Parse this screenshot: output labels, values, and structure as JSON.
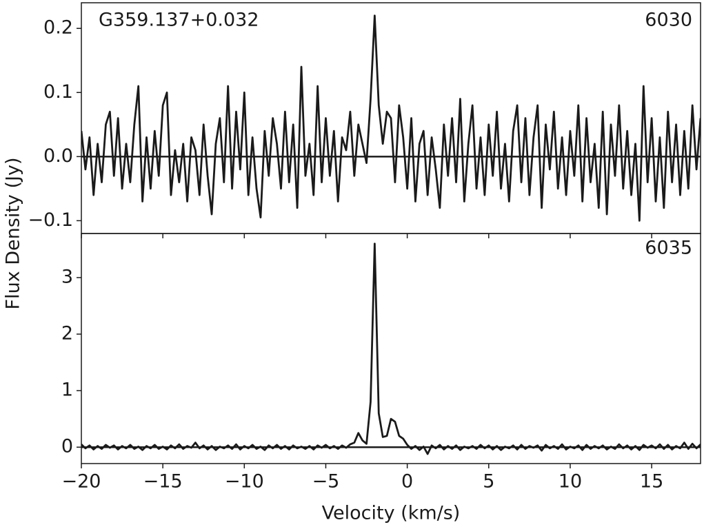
{
  "chart_data": [
    {
      "type": "line",
      "title": "G359.137+0.032",
      "label": "6030",
      "ylabel": "Flux Density (Jy)",
      "color": "#1a1a1a",
      "xlim": [
        -20,
        18
      ],
      "xticks": [
        -20,
        -15,
        -10,
        -5,
        0,
        5,
        10,
        15
      ],
      "ylim": [
        -0.12,
        0.24
      ],
      "yticks": [
        {
          "value": -0.1,
          "label": "−0.1"
        },
        {
          "value": 0,
          "label": "0.0"
        },
        0.1,
        0.2
      ],
      "x": [
        -20,
        -19.75,
        -19.5,
        -19.25,
        -19,
        -18.75,
        -18.5,
        -18.25,
        -18,
        -17.75,
        -17.5,
        -17.25,
        -17,
        -16.75,
        -16.5,
        -16.25,
        -16,
        -15.75,
        -15.5,
        -15.25,
        -15,
        -14.75,
        -14.5,
        -14.25,
        -14,
        -13.75,
        -13.5,
        -13.25,
        -13,
        -12.75,
        -12.5,
        -12.25,
        -12,
        -11.75,
        -11.5,
        -11.25,
        -11,
        -10.75,
        -10.5,
        -10.25,
        -10,
        -9.75,
        -9.5,
        -9.25,
        -9,
        -8.75,
        -8.5,
        -8.25,
        -8,
        -7.75,
        -7.5,
        -7.25,
        -7,
        -6.75,
        -6.5,
        -6.25,
        -6,
        -5.75,
        -5.5,
        -5.25,
        -5,
        -4.75,
        -4.5,
        -4.25,
        -4,
        -3.75,
        -3.5,
        -3.25,
        -3,
        -2.75,
        -2.5,
        -2.25,
        -2,
        -1.75,
        -1.5,
        -1.25,
        -1,
        -0.75,
        -0.5,
        -0.25,
        0,
        0.25,
        0.5,
        0.75,
        1,
        1.25,
        1.5,
        1.75,
        2,
        2.25,
        2.5,
        2.75,
        3,
        3.25,
        3.5,
        3.75,
        4,
        4.25,
        4.5,
        4.75,
        5,
        5.25,
        5.5,
        5.75,
        6,
        6.25,
        6.5,
        6.75,
        7,
        7.25,
        7.5,
        7.75,
        8,
        8.25,
        8.5,
        8.75,
        9,
        9.25,
        9.5,
        9.75,
        10,
        10.25,
        10.5,
        10.75,
        11,
        11.25,
        11.5,
        11.75,
        12,
        12.25,
        12.5,
        12.75,
        13,
        13.25,
        13.5,
        13.75,
        14,
        14.25,
        14.5,
        14.75,
        15,
        15.25,
        15.5,
        15.75,
        16,
        16.25,
        16.5,
        16.75,
        17,
        17.25,
        17.5,
        17.75,
        18
      ],
      "values": [
        0.04,
        -0.02,
        0.03,
        -0.06,
        0.02,
        -0.04,
        0.05,
        0.07,
        -0.03,
        0.06,
        -0.05,
        0.02,
        -0.04,
        0.05,
        0.11,
        -0.07,
        0.03,
        -0.05,
        0.04,
        -0.03,
        0.08,
        0.1,
        -0.06,
        0.01,
        -0.04,
        0.02,
        -0.07,
        0.03,
        0.01,
        -0.06,
        0.05,
        -0.03,
        -0.09,
        0.02,
        0.06,
        -0.04,
        0.11,
        -0.05,
        0.07,
        -0.02,
        0.1,
        -0.06,
        0.03,
        -0.05,
        -0.095,
        0.04,
        -0.03,
        0.06,
        0.02,
        -0.05,
        0.07,
        -0.04,
        0.05,
        -0.08,
        0.14,
        -0.03,
        0.02,
        -0.06,
        0.11,
        -0.04,
        0.06,
        -0.03,
        0.04,
        -0.07,
        0.03,
        0.01,
        0.07,
        -0.03,
        0.05,
        0.02,
        -0.01,
        0.09,
        0.22,
        0.08,
        0.02,
        0.07,
        0.06,
        -0.04,
        0.08,
        0.03,
        -0.05,
        0.06,
        -0.07,
        0.02,
        0.04,
        -0.06,
        0.03,
        -0.02,
        -0.08,
        0.05,
        -0.03,
        0.06,
        -0.04,
        0.09,
        -0.07,
        0.02,
        0.08,
        -0.05,
        0.03,
        -0.06,
        0.05,
        -0.03,
        0.07,
        -0.05,
        0.02,
        -0.07,
        0.04,
        0.08,
        -0.04,
        0.06,
        -0.06,
        0.03,
        0.08,
        -0.08,
        0.05,
        -0.02,
        0.07,
        -0.05,
        0.03,
        -0.06,
        0.04,
        -0.03,
        0.08,
        -0.07,
        0.06,
        -0.04,
        0.02,
        -0.08,
        0.07,
        -0.09,
        0.05,
        -0.03,
        0.08,
        -0.05,
        0.04,
        -0.06,
        0.02,
        -0.1,
        0.11,
        -0.04,
        0.06,
        -0.07,
        0.03,
        -0.08,
        0.07,
        -0.04,
        0.05,
        -0.06,
        0.04,
        -0.05,
        0.08,
        -0.02,
        0.06
      ]
    },
    {
      "type": "line",
      "label": "6035",
      "xlabel": "Velocity (km/s)",
      "color": "#1a1a1a",
      "xlim": [
        -20,
        18
      ],
      "xticks": [
        {
          "value": -20,
          "label": "−20"
        },
        {
          "value": -15,
          "label": "−15"
        },
        {
          "value": -10,
          "label": "−10"
        },
        {
          "value": -5,
          "label": "−5"
        },
        0,
        5,
        10,
        15
      ],
      "ylim": [
        -0.29,
        3.78
      ],
      "yticks": [
        0,
        1,
        2,
        3
      ],
      "x": [
        -20,
        -19.75,
        -19.5,
        -19.25,
        -19,
        -18.75,
        -18.5,
        -18.25,
        -18,
        -17.75,
        -17.5,
        -17.25,
        -17,
        -16.75,
        -16.5,
        -16.25,
        -16,
        -15.75,
        -15.5,
        -15.25,
        -15,
        -14.75,
        -14.5,
        -14.25,
        -14,
        -13.75,
        -13.5,
        -13.25,
        -13,
        -12.75,
        -12.5,
        -12.25,
        -12,
        -11.75,
        -11.5,
        -11.25,
        -11,
        -10.75,
        -10.5,
        -10.25,
        -10,
        -9.75,
        -9.5,
        -9.25,
        -9,
        -8.75,
        -8.5,
        -8.25,
        -8,
        -7.75,
        -7.5,
        -7.25,
        -7,
        -6.75,
        -6.5,
        -6.25,
        -6,
        -5.75,
        -5.5,
        -5.25,
        -5,
        -4.75,
        -4.5,
        -4.25,
        -4,
        -3.75,
        -3.5,
        -3.25,
        -3,
        -2.75,
        -2.5,
        -2.25,
        -2,
        -1.75,
        -1.5,
        -1.25,
        -1,
        -0.75,
        -0.5,
        -0.25,
        0,
        0.25,
        0.5,
        0.75,
        1,
        1.25,
        1.5,
        1.75,
        2,
        2.25,
        2.5,
        2.75,
        3,
        3.25,
        3.5,
        3.75,
        4,
        4.25,
        4.5,
        4.75,
        5,
        5.25,
        5.5,
        5.75,
        6,
        6.25,
        6.5,
        6.75,
        7,
        7.25,
        7.5,
        7.75,
        8,
        8.25,
        8.5,
        8.75,
        9,
        9.25,
        9.5,
        9.75,
        10,
        10.25,
        10.5,
        10.75,
        11,
        11.25,
        11.5,
        11.75,
        12,
        12.25,
        12.5,
        12.75,
        13,
        13.25,
        13.5,
        13.75,
        14,
        14.25,
        14.5,
        14.75,
        15,
        15.25,
        15.5,
        15.75,
        16,
        16.25,
        16.5,
        16.75,
        17,
        17.25,
        17.5,
        17.75,
        18
      ],
      "values": [
        0.05,
        -0.02,
        0.03,
        -0.04,
        0.02,
        -0.03,
        0.04,
        -0.01,
        0.03,
        -0.04,
        0.02,
        -0.02,
        0.04,
        -0.03,
        0.01,
        -0.05,
        0.02,
        -0.02,
        0.04,
        -0.03,
        0.01,
        -0.04,
        0.03,
        -0.02,
        0.05,
        -0.03,
        0.02,
        -0.01,
        0.08,
        -0.02,
        0.03,
        -0.04,
        0.02,
        -0.05,
        0.01,
        -0.02,
        0.03,
        -0.03,
        0.05,
        -0.04,
        0.02,
        -0.02,
        0.04,
        -0.03,
        0.01,
        -0.05,
        0.03,
        -0.02,
        0.04,
        -0.03,
        0.02,
        -0.04,
        0.03,
        -0.02,
        0.01,
        -0.03,
        0.02,
        -0.04,
        0.03,
        -0.01,
        0.04,
        -0.02,
        0.02,
        -0.03,
        0.03,
        -0.01,
        0.05,
        0.08,
        0.25,
        0.12,
        0.06,
        0.8,
        3.6,
        0.6,
        0.18,
        0.2,
        0.5,
        0.45,
        0.2,
        0.15,
        0.04,
        -0.03,
        0.02,
        -0.05,
        0.01,
        -0.12,
        0.03,
        -0.02,
        0.04,
        -0.04,
        0.02,
        -0.03,
        0.03,
        -0.05,
        0.01,
        -0.02,
        0.02,
        -0.03,
        0.04,
        -0.02,
        0.03,
        -0.04,
        0.02,
        -0.05,
        0.01,
        -0.02,
        0.03,
        -0.04,
        0.04,
        -0.03,
        0.02,
        -0.01,
        0.03,
        -0.06,
        0.04,
        -0.02,
        0.02,
        -0.03,
        0.05,
        -0.04,
        0.01,
        -0.02,
        0.03,
        -0.05,
        0.04,
        -0.03,
        0.02,
        -0.02,
        0.03,
        -0.04,
        0.01,
        -0.03,
        0.05,
        -0.02,
        0.03,
        -0.04,
        0.02,
        -0.05,
        0.04,
        -0.01,
        0.03,
        -0.02,
        0.05,
        -0.03,
        0.04,
        -0.04,
        0.02,
        -0.02,
        0.08,
        -0.03,
        0.06,
        -0.02,
        0.05
      ]
    }
  ]
}
